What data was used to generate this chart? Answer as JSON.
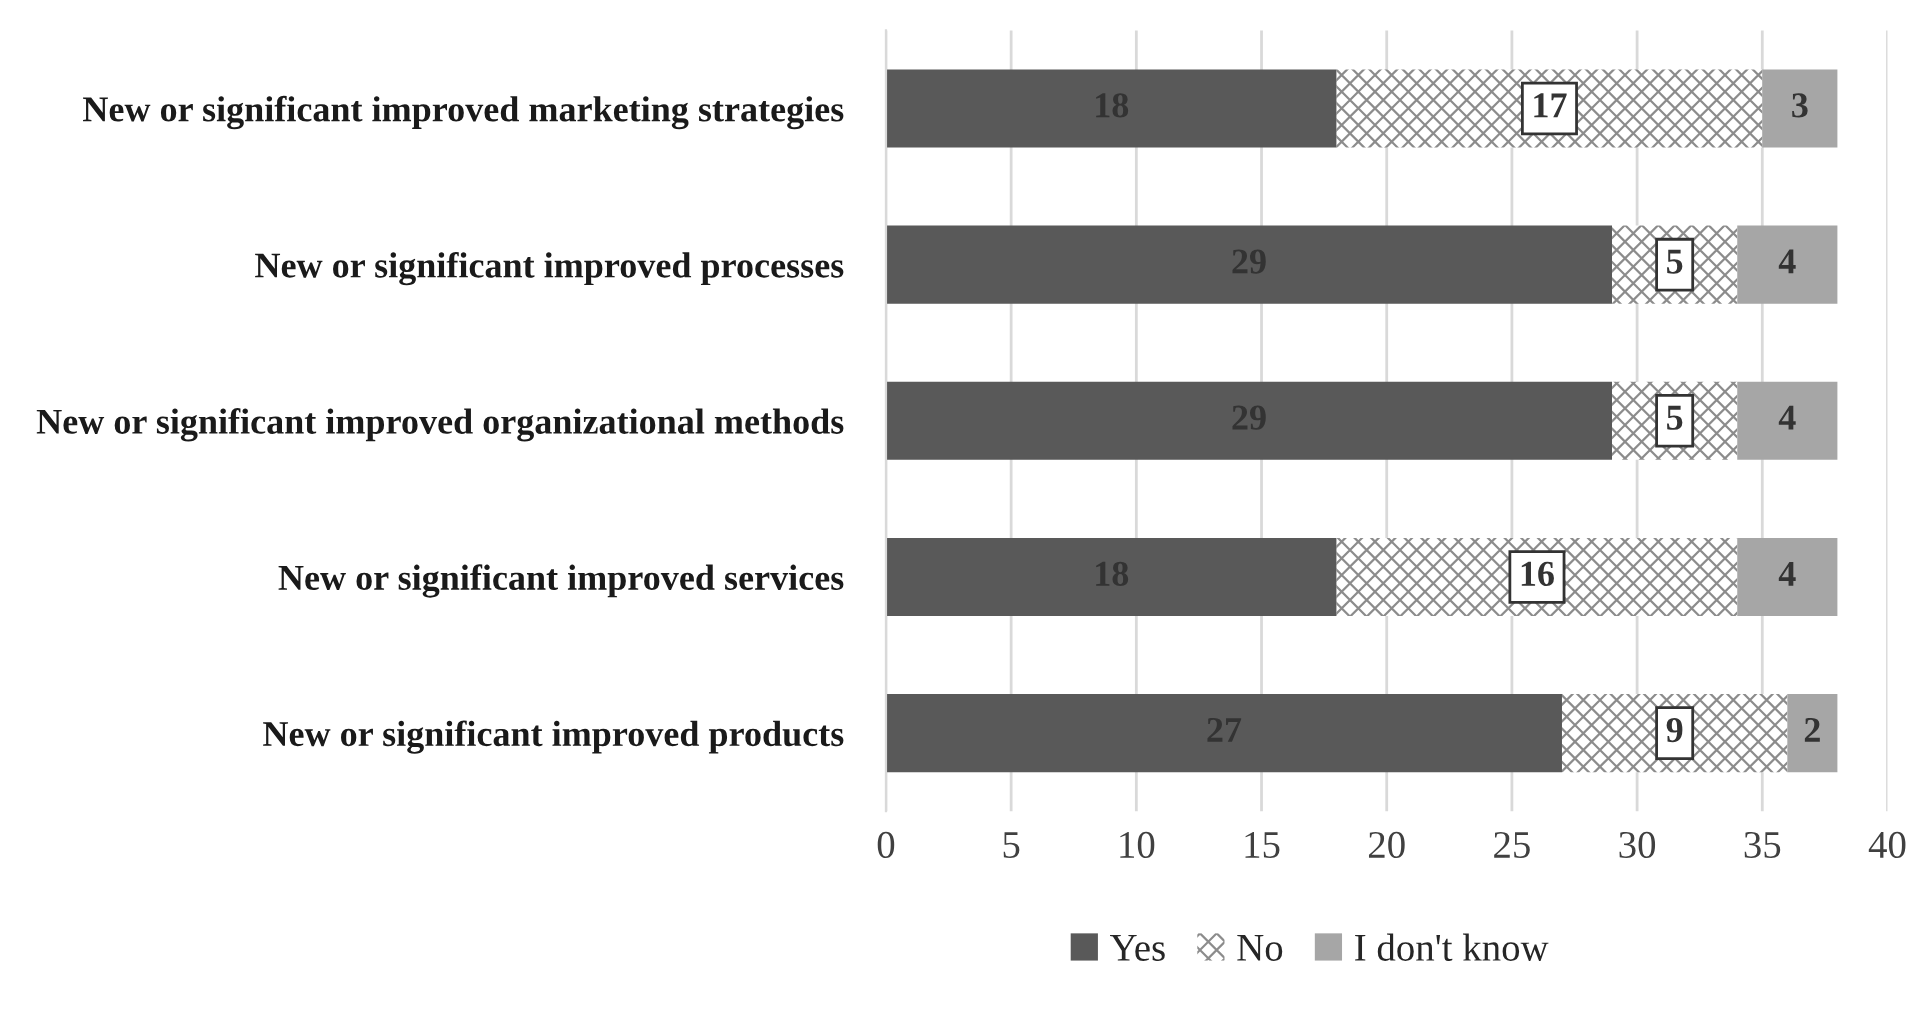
{
  "chart_data": {
    "type": "bar",
    "orientation": "horizontal",
    "stacked": true,
    "categories": [
      "New or significant improved marketing strategies",
      "New or significant improved processes",
      "New or significant improved organizational methods",
      "New or significant improved services",
      "New or significant improved products"
    ],
    "series": [
      {
        "name": "Yes",
        "color": "#595959",
        "values": [
          18,
          29,
          29,
          18,
          27
        ]
      },
      {
        "name": "No",
        "color": "#8c8c8c",
        "values": [
          17,
          5,
          5,
          16,
          9
        ]
      },
      {
        "name": "I don't know",
        "color": "#a6a6a6",
        "values": [
          3,
          4,
          4,
          4,
          2
        ]
      }
    ],
    "xlim": [
      0,
      40
    ],
    "xticks": [
      0,
      5,
      10,
      15,
      20,
      25,
      30,
      35,
      40
    ],
    "grid": "x",
    "legend": "bottom",
    "data_labels": true
  }
}
